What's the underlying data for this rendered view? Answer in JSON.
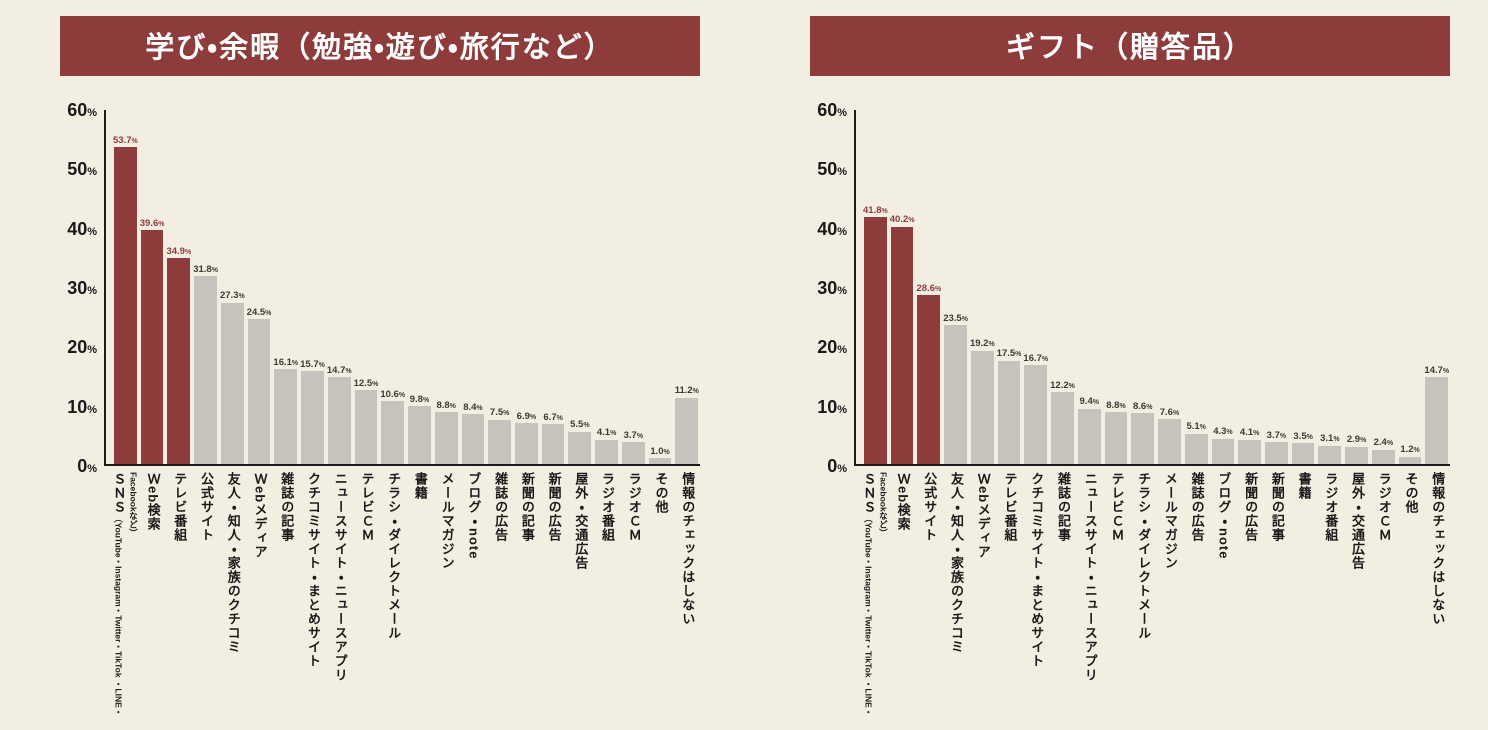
{
  "colors": {
    "background": "#f2eee1",
    "highlight": "#8e3b3c",
    "bar_gray": "#c6c3bc",
    "axis": "#1a1a1a"
  },
  "chart_data": [
    {
      "type": "bar",
      "title": "学び・余暇（勉強・遊び・旅行など）",
      "xlabel": "",
      "ylabel": "%",
      "y_unit": "%",
      "ylim": [
        0,
        60
      ],
      "yticks": [
        0,
        10,
        20,
        30,
        40,
        50,
        60
      ],
      "grid": false,
      "legend": "none",
      "bars": [
        {
          "label": "ＳＮＳ",
          "sub": "（YouTube・Instagram・Twitter・TikTok ・LINE・Facebookなど）",
          "value": 53.7,
          "highlight": true
        },
        {
          "label": "Ｗeb検索",
          "value": 39.6,
          "highlight": true
        },
        {
          "label": "テレビ番組",
          "value": 34.9,
          "highlight": true
        },
        {
          "label": "公式サイト",
          "value": 31.8,
          "highlight": false
        },
        {
          "label": "友人・知人・家族のクチコミ",
          "value": 27.3,
          "highlight": false
        },
        {
          "label": "Ｗebメディア",
          "value": 24.5,
          "highlight": false
        },
        {
          "label": "雑誌の記事",
          "value": 16.1,
          "highlight": false
        },
        {
          "label": "クチコミサイト・まとめサイト",
          "value": 15.7,
          "highlight": false
        },
        {
          "label": "ニュースサイト・ニュースアプリ",
          "value": 14.7,
          "highlight": false
        },
        {
          "label": "テレビＣＭ",
          "value": 12.5,
          "highlight": false
        },
        {
          "label": "チラシ・ダイレクトメール",
          "value": 10.6,
          "highlight": false
        },
        {
          "label": "書籍",
          "value": 9.8,
          "highlight": false
        },
        {
          "label": "メールマガジン",
          "value": 8.8,
          "highlight": false
        },
        {
          "label": "ブログ・note",
          "value": 8.4,
          "highlight": false
        },
        {
          "label": "雑誌の広告",
          "value": 7.5,
          "highlight": false
        },
        {
          "label": "新聞の記事",
          "value": 6.9,
          "highlight": false
        },
        {
          "label": "新聞の広告",
          "value": 6.7,
          "highlight": false
        },
        {
          "label": "屋外・交通広告",
          "value": 5.5,
          "highlight": false
        },
        {
          "label": "ラジオ番組",
          "value": 4.1,
          "highlight": false
        },
        {
          "label": "ラジオＣＭ",
          "value": 3.7,
          "highlight": false
        },
        {
          "label": "その他",
          "value": 1.0,
          "highlight": false
        },
        {
          "label": "情報のチェックはしない",
          "value": 11.2,
          "highlight": false
        }
      ]
    },
    {
      "type": "bar",
      "title": "ギフト（贈答品）",
      "xlabel": "",
      "ylabel": "%",
      "y_unit": "%",
      "ylim": [
        0,
        60
      ],
      "yticks": [
        0,
        10,
        20,
        30,
        40,
        50,
        60
      ],
      "grid": false,
      "legend": "none",
      "bars": [
        {
          "label": "ＳＮＳ",
          "sub": "（YouTube・Instagram・Twitter・TikTok ・LINE・Facebookなど）",
          "value": 41.8,
          "highlight": true
        },
        {
          "label": "Ｗeb検索",
          "value": 40.2,
          "highlight": true
        },
        {
          "label": "公式サイト",
          "value": 28.6,
          "highlight": true
        },
        {
          "label": "友人・知人・家族のクチコミ",
          "value": 23.5,
          "highlight": false
        },
        {
          "label": "Ｗebメディア",
          "value": 19.2,
          "highlight": false
        },
        {
          "label": "テレビ番組",
          "value": 17.5,
          "highlight": false
        },
        {
          "label": "クチコミサイト・まとめサイト",
          "value": 16.7,
          "highlight": false
        },
        {
          "label": "雑誌の記事",
          "value": 12.2,
          "highlight": false
        },
        {
          "label": "ニュースサイト・ニュースアプリ",
          "value": 9.4,
          "highlight": false
        },
        {
          "label": "テレビＣＭ",
          "value": 8.8,
          "highlight": false
        },
        {
          "label": "チラシ・ダイレクトメール",
          "value": 8.6,
          "highlight": false
        },
        {
          "label": "メールマガジン",
          "value": 7.6,
          "highlight": false
        },
        {
          "label": "雑誌の広告",
          "value": 5.1,
          "highlight": false
        },
        {
          "label": "ブログ・note",
          "value": 4.3,
          "highlight": false
        },
        {
          "label": "新聞の広告",
          "value": 4.1,
          "highlight": false
        },
        {
          "label": "新聞の記事",
          "value": 3.7,
          "highlight": false
        },
        {
          "label": "書籍",
          "value": 3.5,
          "highlight": false
        },
        {
          "label": "ラジオ番組",
          "value": 3.1,
          "highlight": false
        },
        {
          "label": "屋外・交通広告",
          "value": 2.9,
          "highlight": false
        },
        {
          "label": "ラジオＣＭ",
          "value": 2.4,
          "highlight": false
        },
        {
          "label": "その他",
          "value": 1.2,
          "highlight": false
        },
        {
          "label": "情報のチェックはしない",
          "value": 14.7,
          "highlight": false
        }
      ]
    }
  ]
}
